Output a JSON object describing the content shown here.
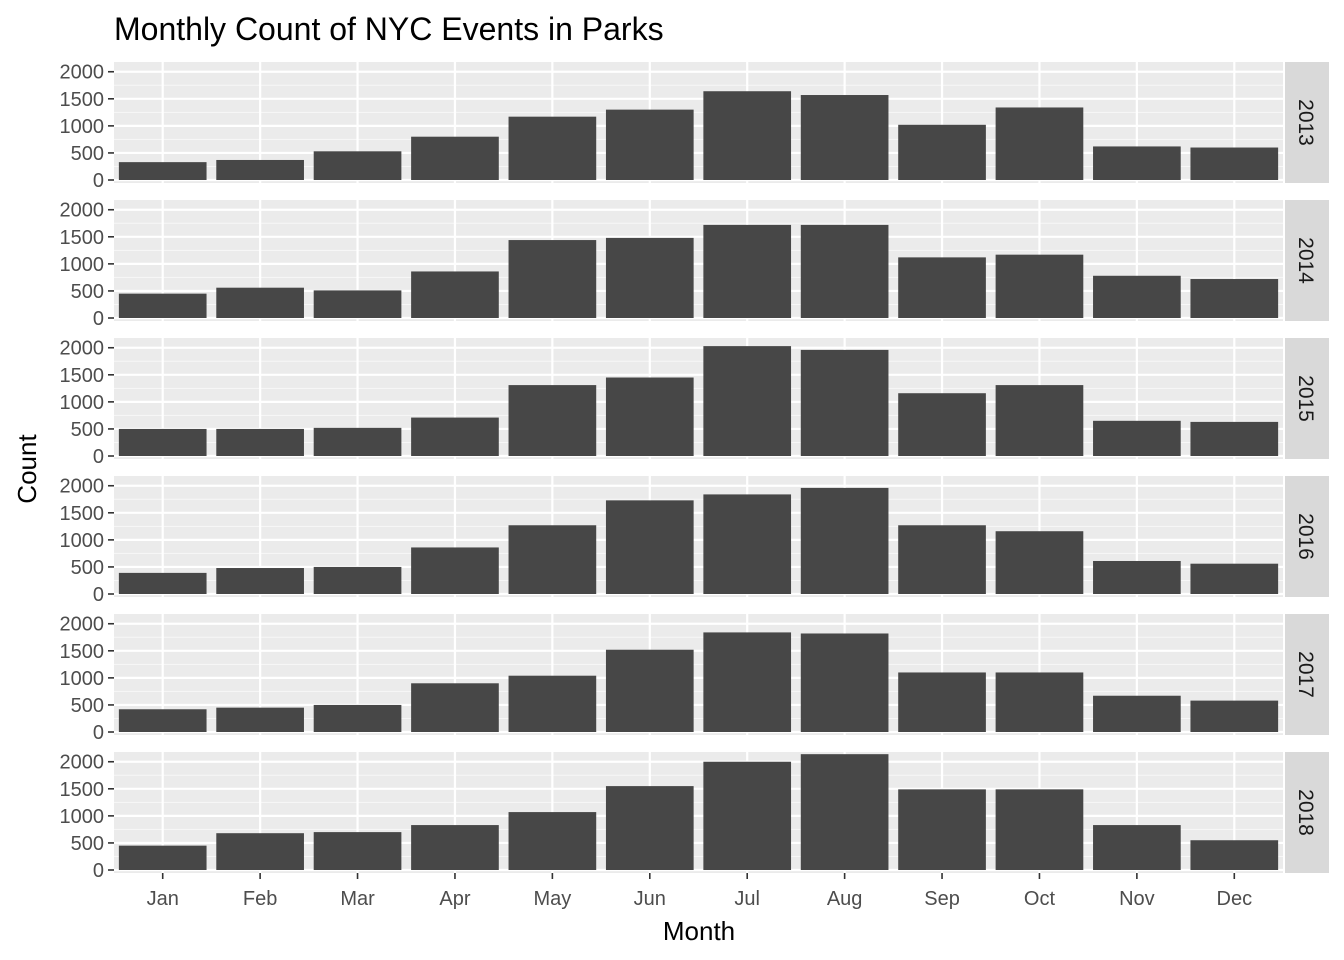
{
  "chart_data": {
    "type": "bar",
    "title": "Monthly Count of NYC Events in Parks",
    "xlabel": "Month",
    "ylabel": "Count",
    "categories": [
      "Jan",
      "Feb",
      "Mar",
      "Apr",
      "May",
      "Jun",
      "Jul",
      "Aug",
      "Sep",
      "Oct",
      "Nov",
      "Dec"
    ],
    "ylim": [
      0,
      2180
    ],
    "yticks": [
      0,
      500,
      1000,
      1500,
      2000
    ],
    "ytick_labels": [
      "0",
      "500",
      "1000",
      "1500",
      "2000"
    ],
    "grid": true,
    "facet_by": "year",
    "facets": [
      {
        "label": "2013",
        "values": [
          330,
          370,
          530,
          800,
          1170,
          1300,
          1640,
          1570,
          1020,
          1340,
          620,
          600
        ]
      },
      {
        "label": "2014",
        "values": [
          450,
          560,
          510,
          860,
          1440,
          1480,
          1720,
          1720,
          1120,
          1170,
          780,
          720
        ]
      },
      {
        "label": "2015",
        "values": [
          500,
          500,
          520,
          710,
          1310,
          1450,
          2030,
          1960,
          1160,
          1310,
          650,
          630
        ]
      },
      {
        "label": "2016",
        "values": [
          390,
          480,
          500,
          860,
          1270,
          1730,
          1840,
          1960,
          1270,
          1160,
          610,
          560
        ]
      },
      {
        "label": "2017",
        "values": [
          420,
          450,
          500,
          900,
          1040,
          1520,
          1840,
          1820,
          1100,
          1100,
          670,
          580
        ]
      },
      {
        "label": "2018",
        "values": [
          450,
          680,
          700,
          830,
          1070,
          1550,
          2000,
          2140,
          1490,
          1490,
          830,
          550
        ]
      }
    ],
    "colors": {
      "bar": "#474747",
      "panel_bg": "#ebebeb",
      "grid_major": "#ffffff",
      "strip_bg": "#d9d9d9",
      "tick": "#333333"
    }
  }
}
